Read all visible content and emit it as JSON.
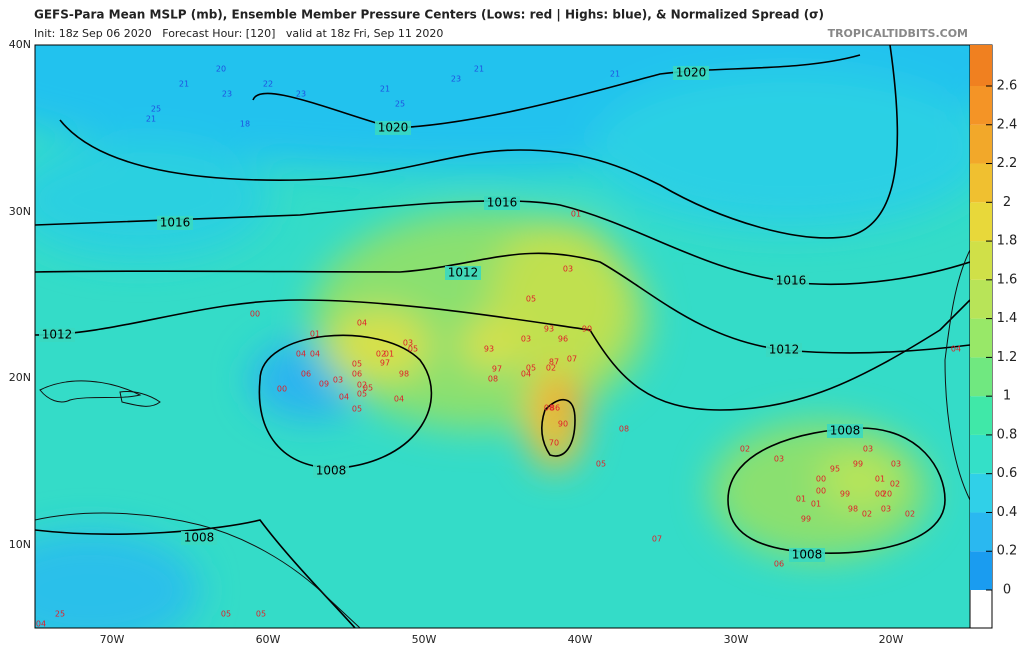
{
  "header": {
    "title": "GEFS-Para Mean MSLP (mb), Ensemble Member Pressure Centers (Lows: red | Highs: blue), & Normalized Spread (σ)",
    "subtitle": "Init: 18z Sep 06 2020   Forecast Hour: [120]   valid at 18z Fri, Sep 11 2020",
    "credit": "TROPICALTIDBITS.COM"
  },
  "map": {
    "lat_labels": [
      "40N",
      "30N",
      "20N",
      "10N"
    ],
    "lon_labels": [
      "70W",
      "60W",
      "50W",
      "40W",
      "30W",
      "20W"
    ],
    "isobar_labels": [
      "1020",
      "1020",
      "1016",
      "1016",
      "1016",
      "1012",
      "1012",
      "1012",
      "1008",
      "1008",
      "1008",
      "1008"
    ],
    "lows": [
      "00",
      "01",
      "04",
      "04",
      "04",
      "06",
      "05",
      "02",
      "01",
      "97",
      "05",
      "03",
      "06",
      "98",
      "03",
      "09",
      "02",
      "05",
      "04",
      "05",
      "04",
      "05",
      "00",
      "01",
      "03",
      "05",
      "93",
      "90",
      "03",
      "96",
      "93",
      "97",
      "08",
      "05",
      "04",
      "02",
      "07",
      "87",
      "08",
      "86",
      "90",
      "70",
      "08",
      "05",
      "07",
      "02",
      "03",
      "95",
      "99",
      "03",
      "03",
      "00",
      "01",
      "02",
      "00",
      "99",
      "00",
      "20",
      "01",
      "01",
      "98",
      "02",
      "03",
      "02",
      "99",
      "06",
      "04",
      "05",
      "05",
      "04",
      "25"
    ],
    "highs": [
      "20",
      "21",
      "22",
      "23",
      "23",
      "25",
      "21",
      "18",
      "21",
      "25",
      "23",
      "21",
      "21"
    ]
  },
  "colorbar": {
    "ticks": [
      0,
      0.2,
      0.4,
      0.6,
      0.8,
      1,
      1.2,
      1.4,
      1.6,
      1.8,
      2,
      2.2,
      2.4,
      2.6
    ],
    "colors": [
      "#1a9cf0",
      "#2ab8f0",
      "#30d0e8",
      "#34e0c8",
      "#40e8a8",
      "#70e880",
      "#98e868",
      "#b8e458",
      "#d0e048",
      "#e8d83a",
      "#f0c030",
      "#f2a82a",
      "#f49426",
      "#f08020"
    ]
  }
}
